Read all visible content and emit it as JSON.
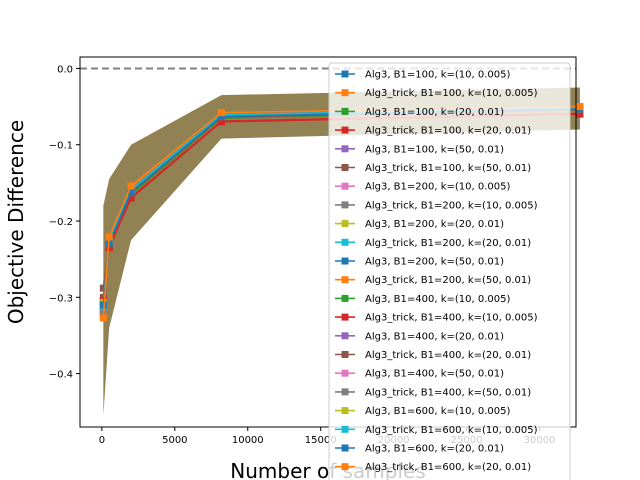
{
  "chart_data": {
    "type": "line",
    "xlabel": "Number of samples",
    "ylabel": "Objective Difference",
    "xlim": [
      -1500,
      32500
    ],
    "ylim": [
      -0.47,
      0.015
    ],
    "xticks": [
      0,
      5000,
      10000,
      15000,
      20000,
      25000,
      30000
    ],
    "xtick_labels": [
      "0",
      "5000",
      "10000",
      "15000",
      "20000",
      "25000",
      "30000"
    ],
    "yticks": [
      0.0,
      -0.1,
      -0.2,
      -0.3,
      -0.4
    ],
    "ytick_labels": [
      "0.0",
      "−0.1",
      "−0.2",
      "−0.3",
      "−0.4"
    ],
    "reference_line": {
      "y": 0.0,
      "style": "dashed",
      "color": "#808080"
    },
    "x": [
      100,
      500,
      2000,
      8192,
      32768
    ],
    "band": {
      "color": "#8c7a4a",
      "upper": [
        -0.18,
        -0.145,
        -0.1,
        -0.035,
        -0.025
      ],
      "lower": [
        -0.455,
        -0.34,
        -0.225,
        -0.092,
        -0.08
      ]
    },
    "legend_position": "right",
    "series": [
      {
        "name": "Alg3, B1=100, k=(10, 0.005)",
        "color": "#1f77b4",
        "values": [
          -0.318,
          -0.228,
          -0.16,
          -0.062,
          -0.052
        ]
      },
      {
        "name": "Alg3_trick, B1=100, k=(10, 0.005)",
        "color": "#ff7f0e",
        "values": [
          -0.325,
          -0.222,
          -0.155,
          -0.058,
          -0.05
        ]
      },
      {
        "name": "Alg3, B1=100, k=(20, 0.01)",
        "color": "#2ca02c",
        "values": [
          -0.31,
          -0.232,
          -0.165,
          -0.065,
          -0.054
        ]
      },
      {
        "name": "Alg3_trick, B1=100, k=(20, 0.01)",
        "color": "#d62728",
        "values": [
          -0.305,
          -0.235,
          -0.17,
          -0.07,
          -0.06
        ]
      },
      {
        "name": "Alg3, B1=100, k=(50, 0.01)",
        "color": "#9467bd",
        "values": [
          -0.312,
          -0.229,
          -0.162,
          -0.063,
          -0.053
        ]
      },
      {
        "name": "Alg3_trick, B1=100, k=(50, 0.01)",
        "color": "#8c564b",
        "values": [
          -0.3,
          -0.23,
          -0.163,
          -0.064,
          -0.054
        ]
      },
      {
        "name": "Alg3, B1=200, k=(10, 0.005)",
        "color": "#e377c2",
        "values": [
          -0.315,
          -0.226,
          -0.159,
          -0.061,
          -0.052
        ]
      },
      {
        "name": "Alg3_trick, B1=200, k=(10, 0.005)",
        "color": "#7f7f7f",
        "values": [
          -0.32,
          -0.224,
          -0.157,
          -0.06,
          -0.051
        ]
      },
      {
        "name": "Alg3, B1=200, k=(20, 0.01)",
        "color": "#bcbd22",
        "values": [
          -0.308,
          -0.227,
          -0.161,
          -0.062,
          -0.053
        ]
      },
      {
        "name": "Alg3_trick, B1=200, k=(20, 0.01)",
        "color": "#17becf",
        "values": [
          -0.313,
          -0.225,
          -0.158,
          -0.061,
          -0.052
        ]
      },
      {
        "name": "Alg3, B1=200, k=(50, 0.01)",
        "color": "#1f77b4",
        "values": [
          -0.309,
          -0.229,
          -0.162,
          -0.063,
          -0.053
        ]
      },
      {
        "name": "Alg3_trick, B1=200, k=(50, 0.01)",
        "color": "#ff7f0e",
        "values": [
          -0.322,
          -0.223,
          -0.156,
          -0.059,
          -0.051
        ]
      },
      {
        "name": "Alg3, B1=400, k=(10, 0.005)",
        "color": "#2ca02c",
        "values": [
          -0.311,
          -0.231,
          -0.164,
          -0.064,
          -0.054
        ]
      },
      {
        "name": "Alg3_trick, B1=400, k=(10, 0.005)",
        "color": "#d62728",
        "values": [
          -0.304,
          -0.234,
          -0.169,
          -0.069,
          -0.059
        ]
      },
      {
        "name": "Alg3, B1=400, k=(20, 0.01)",
        "color": "#9467bd",
        "values": [
          -0.314,
          -0.228,
          -0.161,
          -0.062,
          -0.053
        ]
      },
      {
        "name": "Alg3_trick, B1=400, k=(20, 0.01)",
        "color": "#8c564b",
        "values": [
          -0.288,
          -0.23,
          -0.163,
          -0.064,
          -0.054
        ]
      },
      {
        "name": "Alg3, B1=400, k=(50, 0.01)",
        "color": "#e377c2",
        "values": [
          -0.316,
          -0.227,
          -0.16,
          -0.062,
          -0.052
        ]
      },
      {
        "name": "Alg3_trick, B1=400, k=(50, 0.01)",
        "color": "#7f7f7f",
        "values": [
          -0.319,
          -0.225,
          -0.158,
          -0.06,
          -0.051
        ]
      },
      {
        "name": "Alg3, B1=600, k=(10, 0.005)",
        "color": "#bcbd22",
        "values": [
          -0.307,
          -0.228,
          -0.161,
          -0.062,
          -0.053
        ]
      },
      {
        "name": "Alg3_trick, B1=600, k=(10, 0.005)",
        "color": "#17becf",
        "values": [
          -0.312,
          -0.226,
          -0.159,
          -0.061,
          -0.052
        ]
      },
      {
        "name": "Alg3, B1=600, k=(20, 0.01)",
        "color": "#1f77b4",
        "values": [
          -0.31,
          -0.229,
          -0.162,
          -0.063,
          -0.053
        ]
      },
      {
        "name": "Alg3_trick, B1=600, k=(20, 0.01)",
        "color": "#ff7f0e",
        "values": [
          -0.327,
          -0.221,
          -0.154,
          -0.058,
          -0.05
        ]
      }
    ]
  }
}
